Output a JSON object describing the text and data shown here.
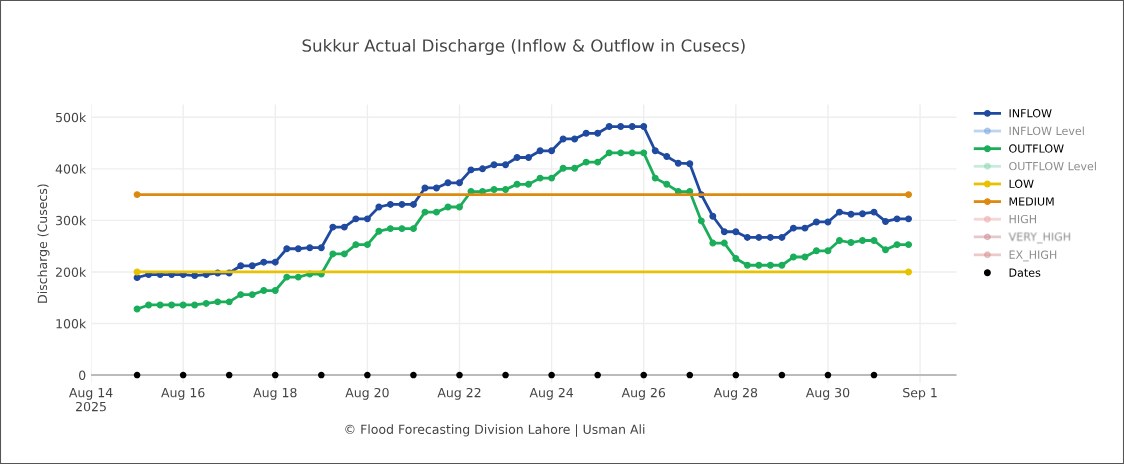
{
  "chart_data": {
    "type": "line",
    "title": "Sukkur Actual Discharge (Inflow & Outflow in Cusecs)",
    "ylabel": "Discharge (Cusecs)",
    "x": [
      "2025-08-15T00:00",
      "2025-08-15T06:00",
      "2025-08-15T12:00",
      "2025-08-15T18:00",
      "2025-08-16T00:00",
      "2025-08-16T06:00",
      "2025-08-16T12:00",
      "2025-08-16T18:00",
      "2025-08-17T00:00",
      "2025-08-17T06:00",
      "2025-08-17T12:00",
      "2025-08-17T18:00",
      "2025-08-18T00:00",
      "2025-08-18T06:00",
      "2025-08-18T12:00",
      "2025-08-18T18:00",
      "2025-08-19T00:00",
      "2025-08-19T06:00",
      "2025-08-19T12:00",
      "2025-08-19T18:00",
      "2025-08-20T00:00",
      "2025-08-20T06:00",
      "2025-08-20T12:00",
      "2025-08-20T18:00",
      "2025-08-21T00:00",
      "2025-08-21T06:00",
      "2025-08-21T12:00",
      "2025-08-21T18:00",
      "2025-08-22T00:00",
      "2025-08-22T06:00",
      "2025-08-22T12:00",
      "2025-08-22T18:00",
      "2025-08-23T00:00",
      "2025-08-23T06:00",
      "2025-08-23T12:00",
      "2025-08-23T18:00",
      "2025-08-24T00:00",
      "2025-08-24T06:00",
      "2025-08-24T12:00",
      "2025-08-24T18:00",
      "2025-08-25T00:00",
      "2025-08-25T06:00",
      "2025-08-25T12:00",
      "2025-08-25T18:00",
      "2025-08-26T00:00",
      "2025-08-26T06:00",
      "2025-08-26T12:00",
      "2025-08-26T18:00",
      "2025-08-27T00:00",
      "2025-08-27T06:00",
      "2025-08-27T12:00",
      "2025-08-27T18:00",
      "2025-08-28T00:00",
      "2025-08-28T06:00",
      "2025-08-28T12:00",
      "2025-08-28T18:00",
      "2025-08-29T00:00",
      "2025-08-29T06:00",
      "2025-08-29T12:00",
      "2025-08-29T18:00",
      "2025-08-30T00:00",
      "2025-08-30T06:00",
      "2025-08-30T12:00",
      "2025-08-30T18:00",
      "2025-08-31T00:00",
      "2025-08-31T06:00",
      "2025-08-31T12:00",
      "2025-08-31T18:00"
    ],
    "series": [
      {
        "name": "INFLOW",
        "color": "#1f4aa0",
        "values": [
          189000,
          195000,
          195000,
          195000,
          195000,
          193000,
          195000,
          198000,
          198000,
          212000,
          212000,
          219000,
          219000,
          245000,
          245000,
          247000,
          247000,
          287000,
          287000,
          303000,
          303000,
          326000,
          331000,
          331000,
          331000,
          363000,
          363000,
          373000,
          373000,
          398000,
          400000,
          408000,
          408000,
          422000,
          422000,
          435000,
          435000,
          458000,
          458000,
          469000,
          469000,
          482000,
          482000,
          482000,
          482000,
          435000,
          424000,
          411000,
          410000,
          350000,
          308000,
          278000,
          278000,
          267000,
          267000,
          267000,
          267000,
          285000,
          285000,
          297000,
          297000,
          316000,
          312000,
          313000,
          316000,
          298000,
          303000,
          303000
        ]
      },
      {
        "name": "INFLOW Level",
        "color": "#6f9fe0",
        "values": [
          null,
          null,
          null,
          null,
          null,
          null,
          null,
          null,
          null,
          null,
          null,
          null,
          null,
          null,
          null,
          null,
          null,
          null,
          null,
          null,
          null,
          null,
          null,
          null,
          null,
          null,
          null,
          null,
          null,
          null,
          null,
          null,
          null,
          null,
          null,
          null,
          null,
          null,
          null,
          null,
          null,
          null,
          null,
          null,
          null,
          null,
          null,
          null,
          null,
          null,
          null,
          null,
          null,
          null,
          null,
          null,
          null,
          null,
          null,
          null,
          null,
          null,
          null,
          null,
          null,
          null,
          null,
          null
        ]
      },
      {
        "name": "OUTFLOW",
        "color": "#1aad5a",
        "values": [
          128000,
          136000,
          136000,
          136000,
          136000,
          136000,
          139000,
          142000,
          142000,
          156000,
          156000,
          164000,
          164000,
          190000,
          190000,
          196000,
          196000,
          235000,
          235000,
          253000,
          253000,
          279000,
          284000,
          284000,
          284000,
          316000,
          316000,
          326000,
          326000,
          356000,
          356000,
          360000,
          360000,
          370000,
          370000,
          382000,
          382000,
          401000,
          401000,
          413000,
          413000,
          431000,
          431000,
          431000,
          431000,
          382000,
          370000,
          356000,
          356000,
          299000,
          256000,
          256000,
          226000,
          213000,
          213000,
          213000,
          213000,
          229000,
          229000,
          241000,
          241000,
          261000,
          257000,
          261000,
          261000,
          243000,
          253000,
          253000
        ]
      },
      {
        "name": "OUTFLOW Level",
        "color": "#86d4ae",
        "values": [
          null,
          null,
          null,
          null,
          null,
          null,
          null,
          null,
          null,
          null,
          null,
          null,
          null,
          null,
          null,
          null,
          null,
          null,
          null,
          null,
          null,
          null,
          null,
          null,
          null,
          null,
          null,
          null,
          null,
          null,
          null,
          null,
          null,
          null,
          null,
          null,
          null,
          null,
          null,
          null,
          null,
          null,
          null,
          null,
          null,
          null,
          null,
          null,
          null,
          null,
          null,
          null,
          null,
          null,
          null,
          null,
          null,
          null,
          null,
          null,
          null,
          null,
          null,
          null,
          null,
          null,
          null,
          null
        ]
      },
      {
        "name": "LOW",
        "color": "#e8c200",
        "x": [
          "2025-08-15T00:00",
          "2025-08-31T18:00"
        ],
        "values": [
          200000,
          200000
        ]
      },
      {
        "name": "MEDIUM",
        "color": "#dc8a10",
        "x": [
          "2025-08-15T00:00",
          "2025-08-31T18:00"
        ],
        "values": [
          350000,
          350000
        ]
      },
      {
        "name": "HIGH",
        "color": "#eba3a3",
        "values": [
          null,
          null,
          null,
          null,
          null,
          null,
          null,
          null,
          null,
          null,
          null,
          null,
          null,
          null,
          null,
          null,
          null,
          null,
          null,
          null,
          null,
          null,
          null,
          null,
          null,
          null,
          null,
          null,
          null,
          null,
          null,
          null,
          null,
          null,
          null,
          null,
          null,
          null,
          null,
          null,
          null,
          null,
          null,
          null,
          null,
          null,
          null,
          null,
          null,
          null,
          null,
          null,
          null,
          null,
          null,
          null,
          null,
          null,
          null,
          null,
          null,
          null,
          null,
          null,
          null,
          null,
          null,
          null
        ]
      },
      {
        "name": "VERY_HIGH",
        "color": "#c9848f",
        "values": [
          null,
          null,
          null,
          null,
          null,
          null,
          null,
          null,
          null,
          null,
          null,
          null,
          null,
          null,
          null,
          null,
          null,
          null,
          null,
          null,
          null,
          null,
          null,
          null,
          null,
          null,
          null,
          null,
          null,
          null,
          null,
          null,
          null,
          null,
          null,
          null,
          null,
          null,
          null,
          null,
          null,
          null,
          null,
          null,
          null,
          null,
          null,
          null,
          null,
          null,
          null,
          null,
          null,
          null,
          null,
          null,
          null,
          null,
          null,
          null,
          null,
          null,
          null,
          null,
          null,
          null,
          null,
          null
        ]
      },
      {
        "name": "EX_HIGH",
        "color": "#d48a8a",
        "values": [
          null,
          null,
          null,
          null,
          null,
          null,
          null,
          null,
          null,
          null,
          null,
          null,
          null,
          null,
          null,
          null,
          null,
          null,
          null,
          null,
          null,
          null,
          null,
          null,
          null,
          null,
          null,
          null,
          null,
          null,
          null,
          null,
          null,
          null,
          null,
          null,
          null,
          null,
          null,
          null,
          null,
          null,
          null,
          null,
          null,
          null,
          null,
          null,
          null,
          null,
          null,
          null,
          null,
          null,
          null,
          null,
          null,
          null,
          null,
          null,
          null,
          null,
          null,
          null,
          null,
          null,
          null,
          null
        ]
      },
      {
        "name": "Dates",
        "type": "scatter",
        "color": "#000000",
        "x": [
          "2025-08-15",
          "2025-08-16",
          "2025-08-17",
          "2025-08-18",
          "2025-08-19",
          "2025-08-20",
          "2025-08-21",
          "2025-08-22",
          "2025-08-23",
          "2025-08-24",
          "2025-08-25",
          "2025-08-26",
          "2025-08-27",
          "2025-08-28",
          "2025-08-29",
          "2025-08-30",
          "2025-08-31"
        ],
        "values": [
          0,
          0,
          0,
          0,
          0,
          0,
          0,
          0,
          0,
          0,
          0,
          0,
          0,
          0,
          0,
          0,
          0
        ]
      }
    ],
    "xlim": [
      "2025-08-14T00:00",
      "2025-09-01T19:00"
    ],
    "xticks": [
      {
        "value": "2025-08-14",
        "label": "Aug 14\n2025"
      },
      {
        "value": "2025-08-16",
        "label": "Aug 16"
      },
      {
        "value": "2025-08-18",
        "label": "Aug 18"
      },
      {
        "value": "2025-08-20",
        "label": "Aug 20"
      },
      {
        "value": "2025-08-22",
        "label": "Aug 22"
      },
      {
        "value": "2025-08-24",
        "label": "Aug 24"
      },
      {
        "value": "2025-08-26",
        "label": "Aug 26"
      },
      {
        "value": "2025-08-28",
        "label": "Aug 28"
      },
      {
        "value": "2025-08-30",
        "label": "Aug 30"
      },
      {
        "value": "2025-09-01",
        "label": "Sep 1"
      }
    ],
    "ylim": [
      -15000,
      525000
    ],
    "yticks": [
      {
        "value": 0,
        "label": "0"
      },
      {
        "value": 100000,
        "label": "100k"
      },
      {
        "value": 200000,
        "label": "200k"
      },
      {
        "value": 300000,
        "label": "300k"
      },
      {
        "value": 400000,
        "label": "400k"
      },
      {
        "value": 500000,
        "label": "500k"
      }
    ],
    "grid": true,
    "legend": "right",
    "marker": "circle",
    "line_style": "solid",
    "annotations": [
      "© Flood Forecasting Division Lahore | Usman Ali"
    ]
  }
}
